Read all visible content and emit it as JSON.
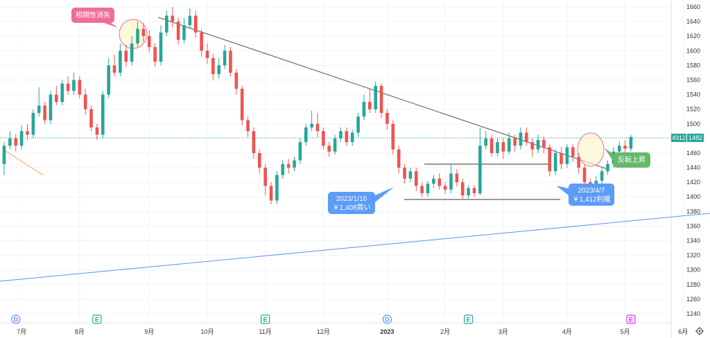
{
  "chart_data": {
    "type": "candlestick",
    "ylim": [
      1230,
      1665
    ],
    "y_ticks": [
      1660,
      1640,
      1620,
      1600,
      1580,
      1560,
      1540,
      1520,
      1500,
      1480,
      1460,
      1440,
      1420,
      1400,
      1380,
      1360,
      1340,
      1320,
      1300,
      1280,
      1260,
      1240
    ],
    "x_ticks": [
      {
        "label": "7月",
        "idx": 3,
        "bold": false
      },
      {
        "label": "8月",
        "idx": 13,
        "bold": false
      },
      {
        "label": "9月",
        "idx": 25,
        "bold": false
      },
      {
        "label": "10月",
        "idx": 35,
        "bold": false
      },
      {
        "label": "11月",
        "idx": 45,
        "bold": false
      },
      {
        "label": "12月",
        "idx": 55,
        "bold": false
      },
      {
        "label": "2023",
        "idx": 66,
        "bold": true
      },
      {
        "label": "2月",
        "idx": 76,
        "bold": false
      },
      {
        "label": "3月",
        "idx": 86,
        "bold": false
      },
      {
        "label": "4月",
        "idx": 97,
        "bold": false
      },
      {
        "label": "5月",
        "idx": 107,
        "bold": false
      },
      {
        "label": "6月",
        "idx": 117,
        "bold": false
      }
    ],
    "last_price": "1482",
    "price_tag_prefix": "4912",
    "candles": [
      [
        1445,
        1470,
        1430,
        1475
      ],
      [
        1470,
        1480,
        1465,
        1490
      ],
      [
        1480,
        1470,
        1462,
        1486
      ],
      [
        1470,
        1490,
        1465,
        1498
      ],
      [
        1490,
        1485,
        1478,
        1500
      ],
      [
        1485,
        1515,
        1480,
        1520
      ],
      [
        1515,
        1525,
        1510,
        1550
      ],
      [
        1525,
        1505,
        1500,
        1530
      ],
      [
        1505,
        1540,
        1500,
        1545
      ],
      [
        1540,
        1530,
        1525,
        1552
      ],
      [
        1530,
        1555,
        1525,
        1560
      ],
      [
        1555,
        1545,
        1540,
        1565
      ],
      [
        1545,
        1560,
        1540,
        1570
      ],
      [
        1560,
        1540,
        1535,
        1565
      ],
      [
        1540,
        1520,
        1512,
        1548
      ],
      [
        1520,
        1495,
        1490,
        1525
      ],
      [
        1495,
        1485,
        1478,
        1500
      ],
      [
        1485,
        1540,
        1480,
        1545
      ],
      [
        1540,
        1580,
        1535,
        1590
      ],
      [
        1580,
        1570,
        1565,
        1595
      ],
      [
        1570,
        1600,
        1565,
        1610
      ],
      [
        1600,
        1585,
        1578,
        1608
      ],
      [
        1585,
        1610,
        1580,
        1620
      ],
      [
        1610,
        1630,
        1605,
        1640
      ],
      [
        1630,
        1620,
        1612,
        1638
      ],
      [
        1620,
        1605,
        1598,
        1628
      ],
      [
        1605,
        1585,
        1578,
        1610
      ],
      [
        1585,
        1625,
        1580,
        1635
      ],
      [
        1625,
        1648,
        1620,
        1655
      ],
      [
        1648,
        1640,
        1632,
        1660
      ],
      [
        1640,
        1615,
        1608,
        1645
      ],
      [
        1615,
        1635,
        1610,
        1645
      ],
      [
        1635,
        1648,
        1630,
        1658
      ],
      [
        1648,
        1625,
        1618,
        1655
      ],
      [
        1625,
        1600,
        1592,
        1630
      ],
      [
        1600,
        1590,
        1582,
        1610
      ],
      [
        1590,
        1568,
        1560,
        1596
      ],
      [
        1568,
        1580,
        1562,
        1590
      ],
      [
        1580,
        1600,
        1575,
        1608
      ],
      [
        1600,
        1570,
        1565,
        1605
      ],
      [
        1570,
        1548,
        1540,
        1575
      ],
      [
        1548,
        1505,
        1498,
        1552
      ],
      [
        1505,
        1490,
        1482,
        1510
      ],
      [
        1490,
        1460,
        1452,
        1495
      ],
      [
        1460,
        1440,
        1432,
        1465
      ],
      [
        1440,
        1415,
        1402,
        1445
      ],
      [
        1415,
        1395,
        1390,
        1420
      ],
      [
        1395,
        1430,
        1390,
        1435
      ],
      [
        1430,
        1445,
        1425,
        1450
      ],
      [
        1445,
        1440,
        1432,
        1452
      ],
      [
        1440,
        1450,
        1435,
        1455
      ],
      [
        1450,
        1475,
        1445,
        1480
      ],
      [
        1475,
        1495,
        1470,
        1500
      ],
      [
        1495,
        1500,
        1490,
        1518
      ],
      [
        1500,
        1490,
        1482,
        1515
      ],
      [
        1490,
        1470,
        1465,
        1495
      ],
      [
        1470,
        1462,
        1455,
        1475
      ],
      [
        1462,
        1480,
        1458,
        1485
      ],
      [
        1480,
        1490,
        1475,
        1495
      ],
      [
        1490,
        1475,
        1470,
        1495
      ],
      [
        1475,
        1488,
        1470,
        1492
      ],
      [
        1488,
        1510,
        1482,
        1515
      ],
      [
        1510,
        1530,
        1505,
        1540
      ],
      [
        1530,
        1520,
        1515,
        1548
      ],
      [
        1520,
        1552,
        1515,
        1558
      ],
      [
        1552,
        1515,
        1508,
        1555
      ],
      [
        1515,
        1500,
        1492,
        1520
      ],
      [
        1500,
        1465,
        1458,
        1505
      ],
      [
        1465,
        1440,
        1432,
        1470
      ],
      [
        1440,
        1425,
        1418,
        1445
      ],
      [
        1425,
        1435,
        1420,
        1440
      ],
      [
        1435,
        1415,
        1408,
        1440
      ],
      [
        1415,
        1405,
        1400,
        1420
      ],
      [
        1405,
        1418,
        1400,
        1422
      ],
      [
        1418,
        1425,
        1412,
        1430
      ],
      [
        1425,
        1415,
        1410,
        1432
      ],
      [
        1415,
        1410,
        1404,
        1420
      ],
      [
        1410,
        1432,
        1405,
        1445
      ],
      [
        1432,
        1420,
        1414,
        1438
      ],
      [
        1420,
        1402,
        1396,
        1425
      ],
      [
        1402,
        1412,
        1398,
        1416
      ],
      [
        1412,
        1405,
        1400,
        1416
      ],
      [
        1405,
        1470,
        1402,
        1495
      ],
      [
        1470,
        1480,
        1465,
        1490
      ],
      [
        1480,
        1460,
        1455,
        1485
      ],
      [
        1460,
        1475,
        1455,
        1480
      ],
      [
        1475,
        1462,
        1452,
        1480
      ],
      [
        1462,
        1480,
        1458,
        1488
      ],
      [
        1480,
        1470,
        1462,
        1485
      ],
      [
        1470,
        1488,
        1465,
        1495
      ],
      [
        1488,
        1475,
        1470,
        1495
      ],
      [
        1475,
        1465,
        1455,
        1480
      ],
      [
        1465,
        1478,
        1460,
        1485
      ],
      [
        1478,
        1468,
        1460,
        1482
      ],
      [
        1468,
        1435,
        1428,
        1472
      ],
      [
        1435,
        1460,
        1430,
        1465
      ],
      [
        1460,
        1445,
        1438,
        1468
      ],
      [
        1445,
        1468,
        1440,
        1472
      ],
      [
        1468,
        1455,
        1448,
        1472
      ],
      [
        1455,
        1440,
        1432,
        1460
      ],
      [
        1440,
        1420,
        1412,
        1445
      ],
      [
        1420,
        1408,
        1400,
        1425
      ],
      [
        1408,
        1422,
        1404,
        1428
      ],
      [
        1422,
        1435,
        1418,
        1440
      ],
      [
        1435,
        1445,
        1430,
        1450
      ],
      [
        1445,
        1462,
        1440,
        1468
      ],
      [
        1462,
        1470,
        1455,
        1476
      ],
      [
        1470,
        1466,
        1458,
        1478
      ],
      [
        1466,
        1482,
        1462,
        1485
      ]
    ]
  },
  "callouts": {
    "correlation_lost": "相関性消失",
    "buy_date": "2023/1/16",
    "buy_price": "￥1,408買い",
    "sell_date": "2023/4/7",
    "sell_price": "￥1,412利確",
    "reversal": "反転上昇"
  },
  "event_badges": [
    {
      "letter": "D",
      "idx": 2,
      "type": "dividend"
    },
    {
      "letter": "E",
      "idx": 16,
      "type": "earnings"
    },
    {
      "letter": "E",
      "idx": 45,
      "type": "earnings"
    },
    {
      "letter": "D",
      "idx": 66,
      "type": "dividend"
    },
    {
      "letter": "E",
      "idx": 80,
      "type": "earnings"
    },
    {
      "letter": "E",
      "idx": 108,
      "type": "earnings-upcoming"
    }
  ],
  "colors": {
    "up": "#26a69a",
    "down": "#ef5350",
    "trendline": "#555555",
    "blue_line": "#5b8def",
    "orange_line": "#f5a142",
    "price_tag": "#26a69a",
    "pink": "#ee6e99",
    "blue_callout": "#5b9cf6",
    "green_callout": "#66b96a"
  },
  "icons": {
    "settings": "gear-icon"
  }
}
